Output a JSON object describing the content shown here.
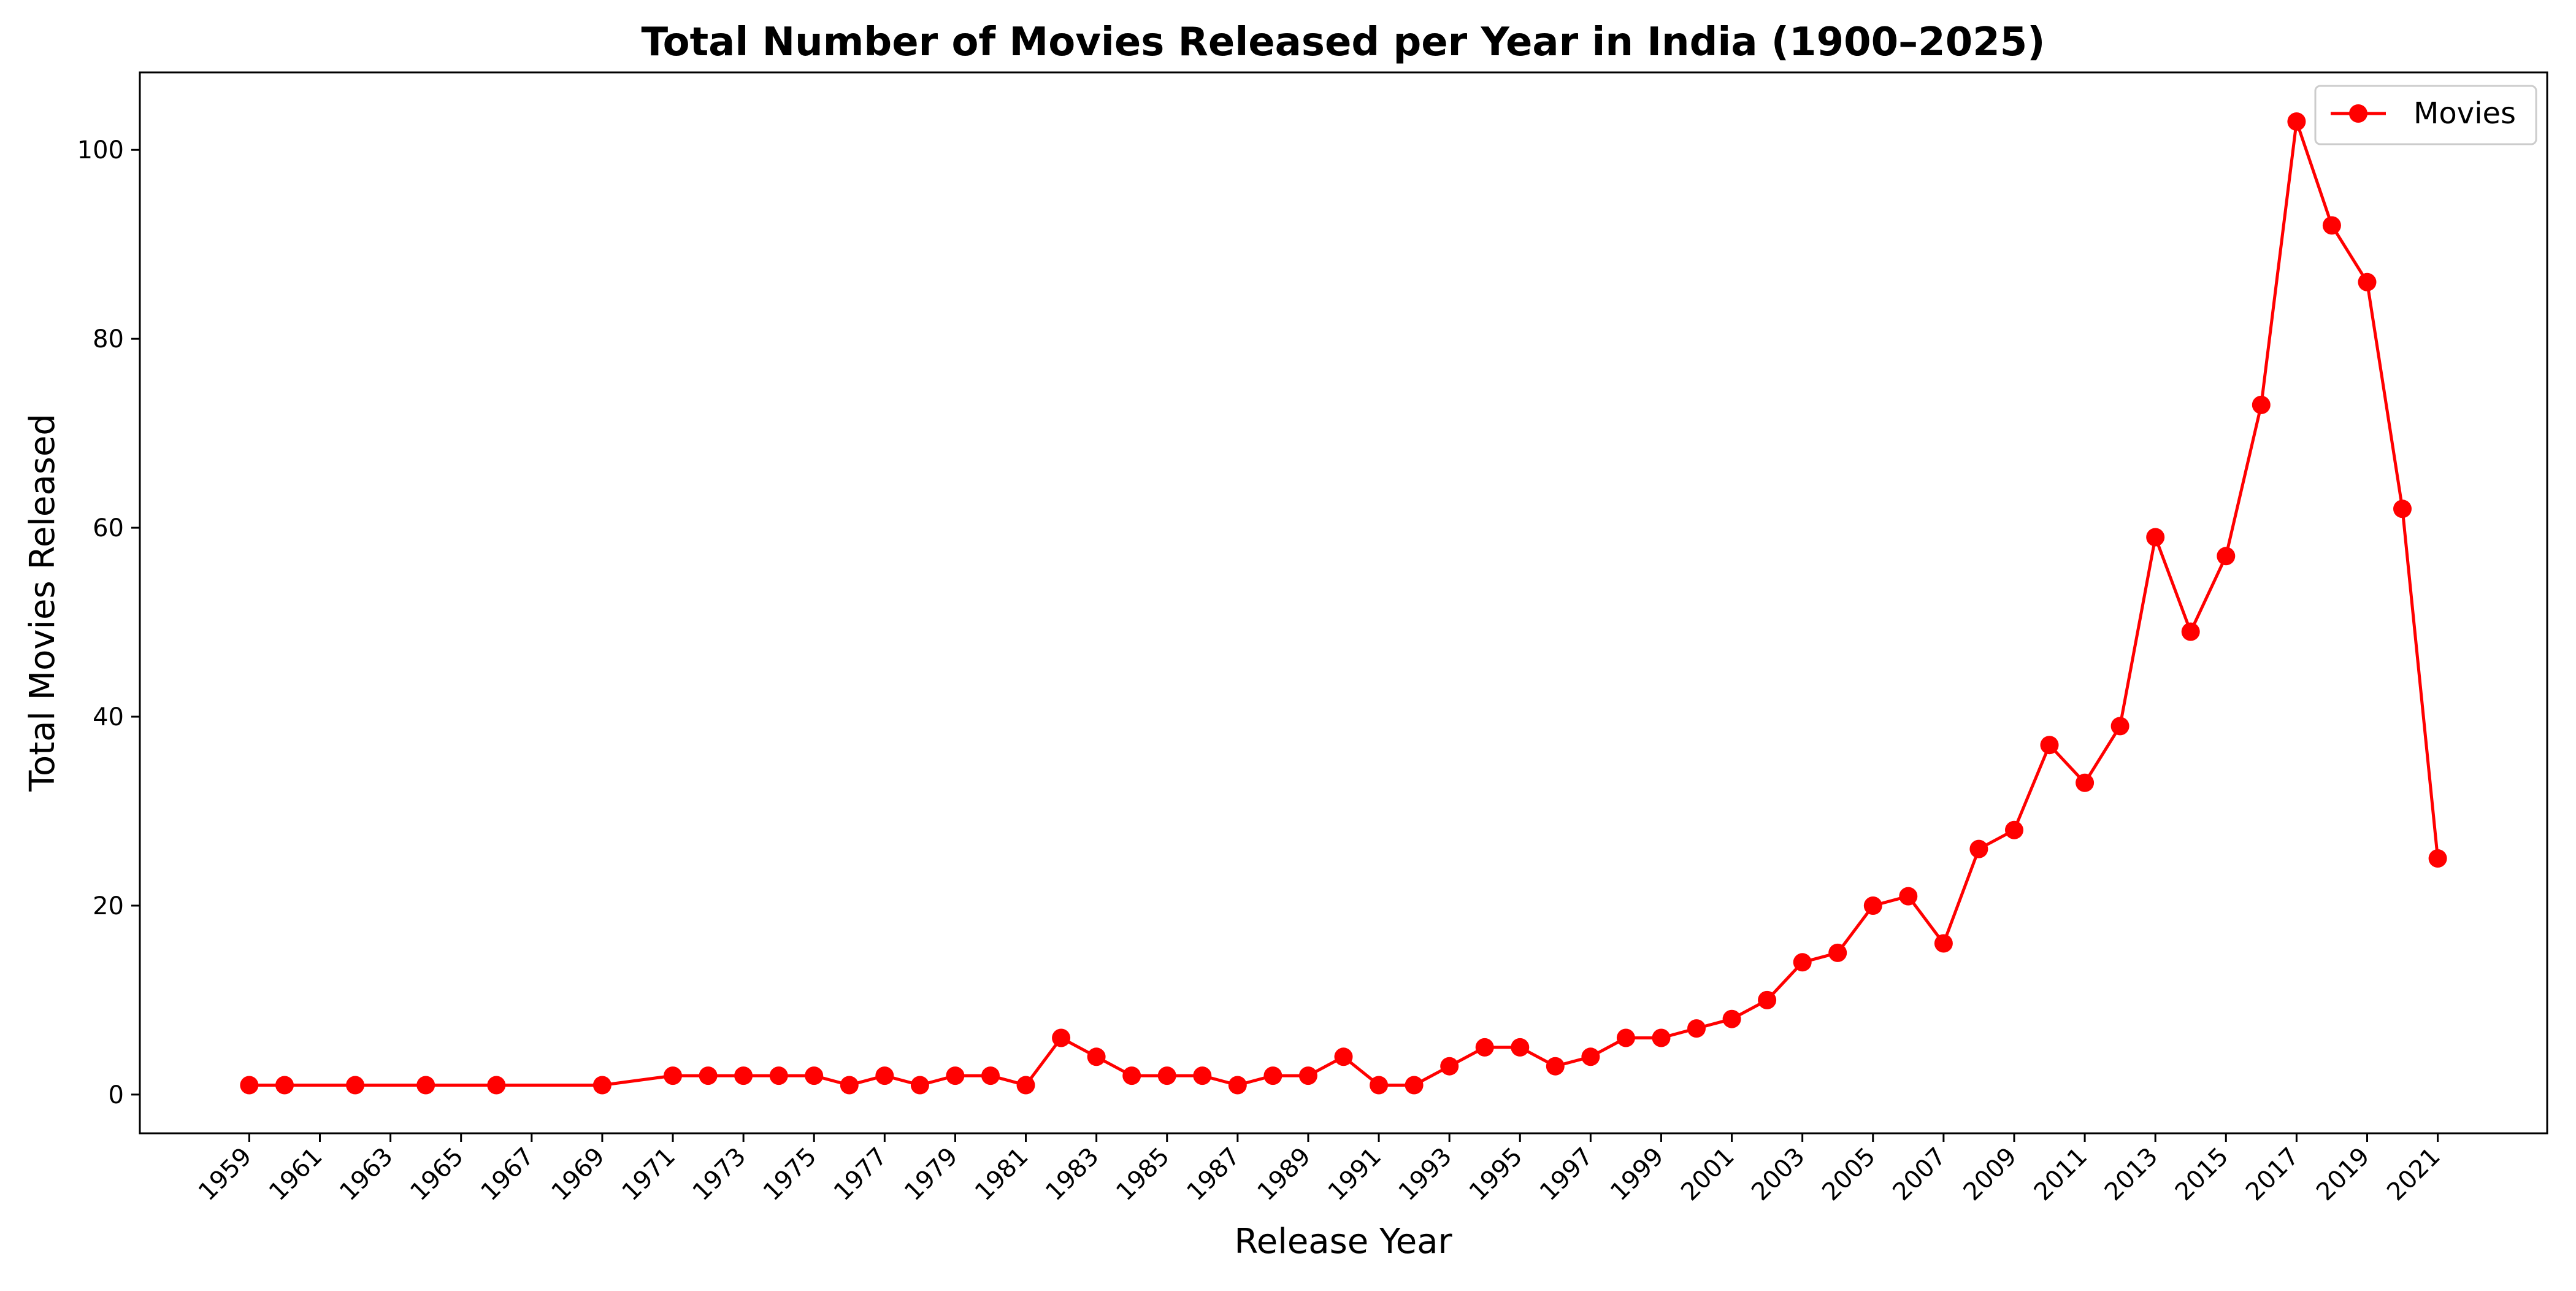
{
  "chart_data": {
    "type": "line",
    "title": "Total Number of Movies Released per Year in India (1900–2025)",
    "xlabel": "Release Year",
    "ylabel": "Total Movies Released",
    "xlim": [
      1955.9,
      2024.1
    ],
    "ylim": [
      -4.1,
      108.2
    ],
    "x_ticks": [
      1959,
      1961,
      1963,
      1965,
      1967,
      1969,
      1971,
      1973,
      1975,
      1977,
      1979,
      1981,
      1983,
      1985,
      1987,
      1989,
      1991,
      1993,
      1995,
      1997,
      1999,
      2001,
      2003,
      2005,
      2007,
      2009,
      2011,
      2013,
      2015,
      2017,
      2019,
      2021
    ],
    "y_ticks": [
      0,
      20,
      40,
      60,
      80,
      100
    ],
    "grid": false,
    "legend_position": "top-right",
    "series": [
      {
        "name": "Movies",
        "color": "#ff0000",
        "marker": "circle",
        "x": [
          1959,
          1960,
          1962,
          1964,
          1966,
          1969,
          1971,
          1972,
          1973,
          1974,
          1975,
          1976,
          1977,
          1978,
          1979,
          1980,
          1981,
          1982,
          1983,
          1984,
          1985,
          1986,
          1987,
          1988,
          1989,
          1990,
          1991,
          1992,
          1993,
          1994,
          1995,
          1996,
          1997,
          1998,
          1999,
          2000,
          2001,
          2002,
          2003,
          2004,
          2005,
          2006,
          2007,
          2008,
          2009,
          2010,
          2011,
          2012,
          2013,
          2014,
          2015,
          2016,
          2017,
          2018,
          2019,
          2020,
          2021
        ],
        "y": [
          1,
          1,
          1,
          1,
          1,
          1,
          2,
          2,
          2,
          2,
          2,
          1,
          2,
          1,
          2,
          2,
          1,
          6,
          4,
          2,
          2,
          2,
          1,
          2,
          2,
          4,
          1,
          1,
          3,
          5,
          5,
          3,
          4,
          6,
          6,
          7,
          8,
          10,
          14,
          15,
          20,
          21,
          16,
          26,
          28,
          37,
          33,
          39,
          59,
          49,
          57,
          73,
          103,
          92,
          86,
          62,
          25
        ]
      }
    ]
  }
}
